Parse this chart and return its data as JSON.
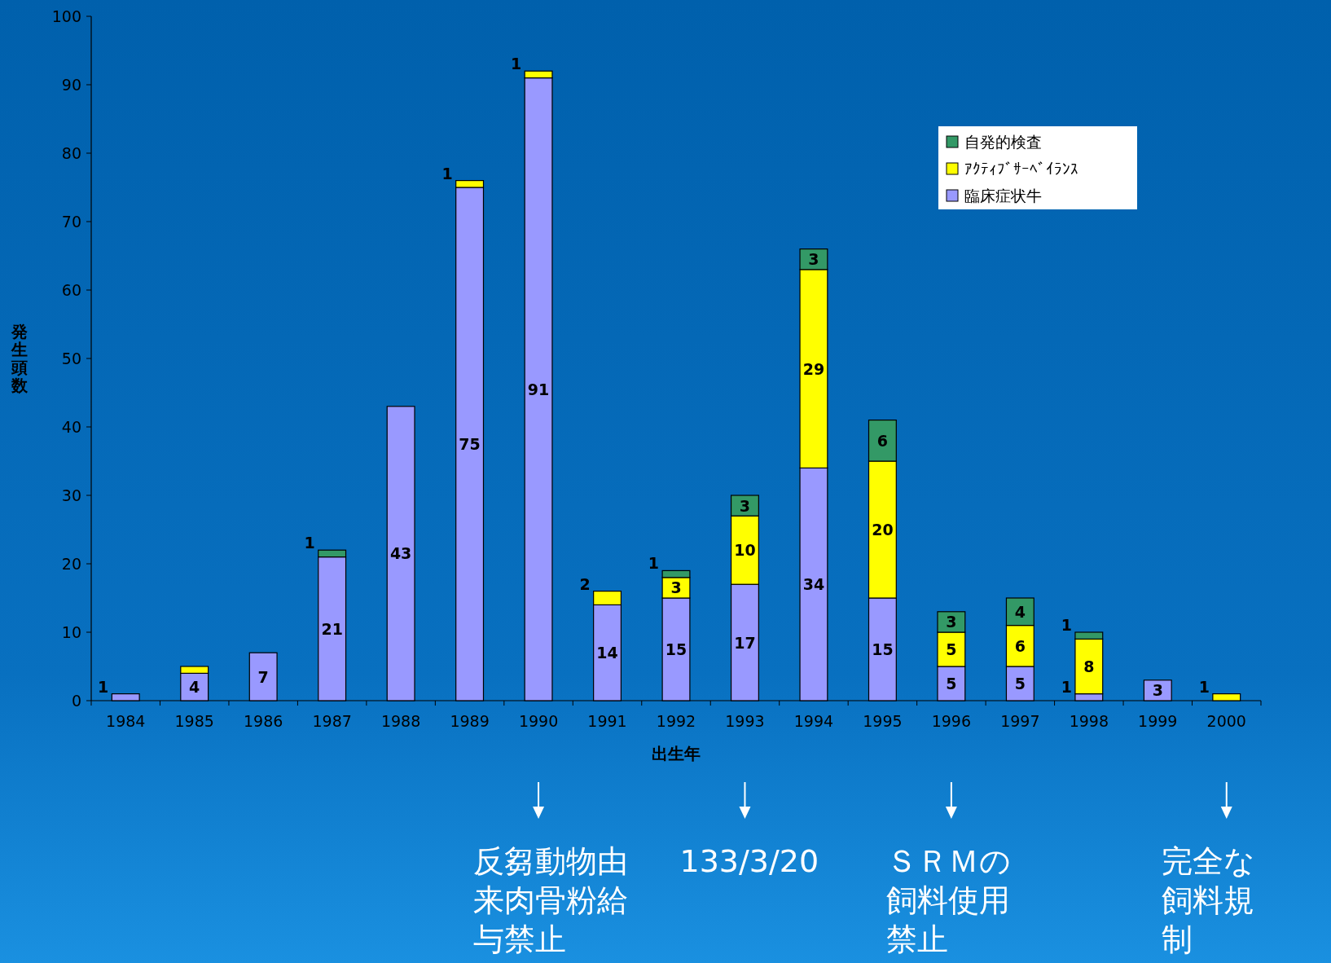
{
  "chart_data": {
    "type": "bar",
    "stacked": true,
    "xlabel": "出生年",
    "ylabel": "発生頭数",
    "categories": [
      "1984",
      "1985",
      "1986",
      "1987",
      "1988",
      "1989",
      "1990",
      "1991",
      "1992",
      "1993",
      "1994",
      "1995",
      "1996",
      "1997",
      "1998",
      "1999",
      "2000"
    ],
    "series": [
      {
        "name": "臨床症状牛",
        "color": "#9999ff",
        "values": [
          1,
          4,
          7,
          21,
          43,
          75,
          91,
          14,
          15,
          17,
          34,
          15,
          5,
          5,
          1,
          3,
          0
        ],
        "value_labels": [
          "1",
          "4",
          "7",
          "21",
          "43",
          "75",
          "91",
          "14",
          "15",
          "17",
          "34",
          "15",
          "5",
          "5",
          "1",
          "3",
          null
        ]
      },
      {
        "name": "ｱｸﾃｨﾌﾞｻｰﾍﾞｲﾗﾝｽ",
        "color": "#ffff00",
        "values": [
          0,
          1,
          0,
          0,
          0,
          1,
          1,
          2,
          3,
          10,
          29,
          20,
          5,
          6,
          8,
          0,
          1
        ],
        "value_labels": [
          null,
          null,
          null,
          null,
          null,
          "1",
          "1",
          "2",
          "3",
          "10",
          "29",
          "20",
          "5",
          "6",
          "8",
          null,
          "1"
        ]
      },
      {
        "name": "自発的検査",
        "color": "#339966",
        "values": [
          0,
          0,
          0,
          1,
          0,
          0,
          0,
          0,
          1,
          3,
          3,
          6,
          3,
          4,
          1,
          0,
          0
        ],
        "value_labels": [
          null,
          null,
          null,
          "1",
          null,
          null,
          null,
          null,
          "1",
          "3",
          "3",
          "6",
          "3",
          "4",
          "1",
          null,
          null
        ]
      }
    ],
    "ylim": [
      0,
      100
    ],
    "yticks": [
      0,
      10,
      20,
      30,
      40,
      50,
      60,
      70,
      80,
      90,
      100
    ],
    "grid": false,
    "legend": "top right",
    "annotations": [
      "反芻動物由来肉骨粉給与禁止",
      "133/3/20",
      "ＳＲＭの飼料使用禁止",
      "完全な飼料規制"
    ]
  }
}
